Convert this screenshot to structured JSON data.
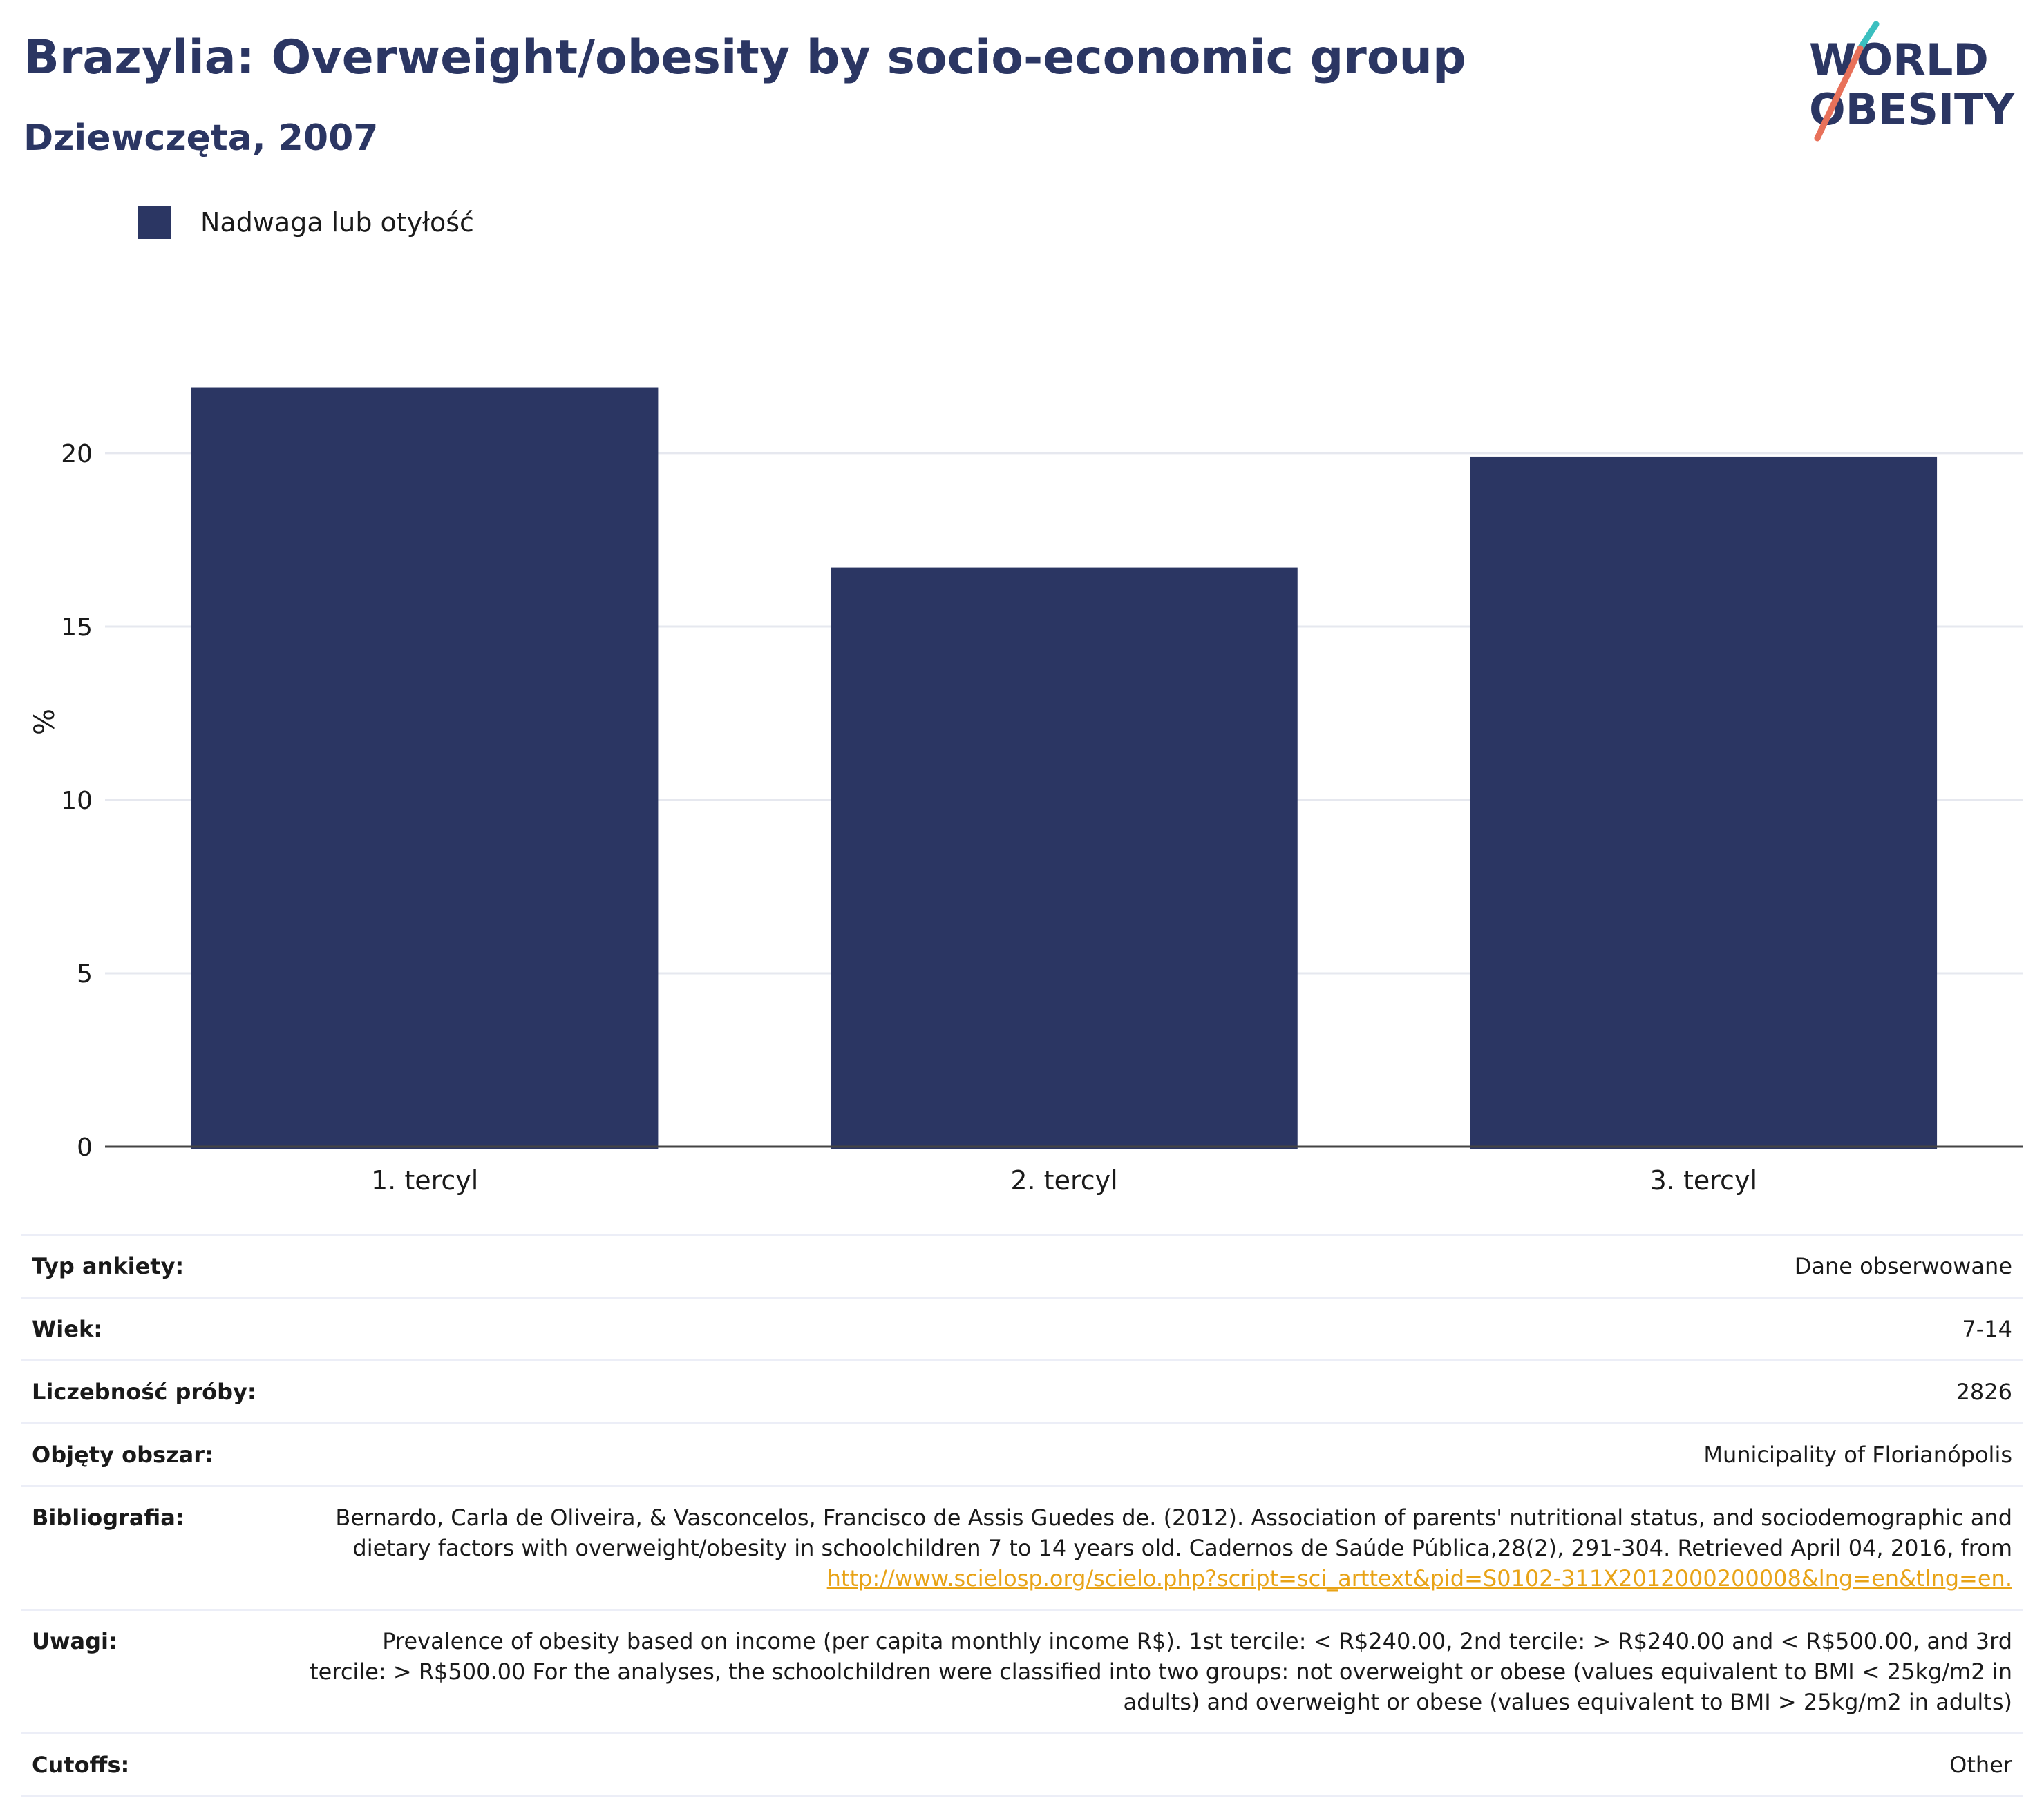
{
  "header": {
    "title": "Brazylia: Overweight/obesity by socio-economic group",
    "subtitle": "Dziewczęta, 2007"
  },
  "logo": {
    "line1": "WORLD",
    "line2": "OBESITY"
  },
  "chart_data": {
    "type": "bar",
    "categories": [
      "1. tercyl",
      "2. tercyl",
      "3. tercyl"
    ],
    "series": [
      {
        "name": "Nadwaga lub otyłość",
        "values": [
          21.9,
          16.7,
          19.9
        ],
        "color": "#2b3663"
      }
    ],
    "ylabel": "%",
    "xlabel": "",
    "ylim": [
      0,
      24.5
    ],
    "yticks": [
      0,
      5,
      10,
      15,
      20
    ],
    "grid": true,
    "legend": "top-left"
  },
  "info": {
    "survey_type": {
      "label": "Typ ankiety:",
      "value": "Dane obserwowane"
    },
    "age": {
      "label": "Wiek:",
      "value": "7-14"
    },
    "sample_size": {
      "label": "Liczebność próby:",
      "value": "2826"
    },
    "area": {
      "label": "Objęty obszar:",
      "value": "Municipality of Florianópolis"
    },
    "bibliography": {
      "label": "Bibliografia:",
      "text": "Bernardo, Carla de Oliveira, & Vasconcelos, Francisco de Assis Guedes de. (2012). Association of parents' nutritional status, and sociodemographic and dietary factors with overweight/obesity in schoolchildren 7 to 14 years old. Cadernos de Saúde Pública,28(2), 291-304. Retrieved April 04, 2016, from ",
      "link": "http://www.scielosp.org/scielo.php?script=sci_arttext&pid=S0102-311X2012000200008&lng=en&tlng=en."
    },
    "notes": {
      "label": "Uwagi:",
      "value": "Prevalence of obesity based on income (per capita monthly income R$). 1st tercile: < R$240.00, 2nd tercile: > R$240.00 and < R$500.00, and 3rd tercile: > R$500.00 For the analyses, the schoolchildren were classified into two groups: not overweight or obese (values equivalent to BMI < 25kg/m2 in adults) and overweight or obese (values equivalent to BMI > 25kg/m2 in adults)"
    },
    "cutoffs": {
      "label": "Cutoffs:",
      "value": "Other"
    }
  }
}
